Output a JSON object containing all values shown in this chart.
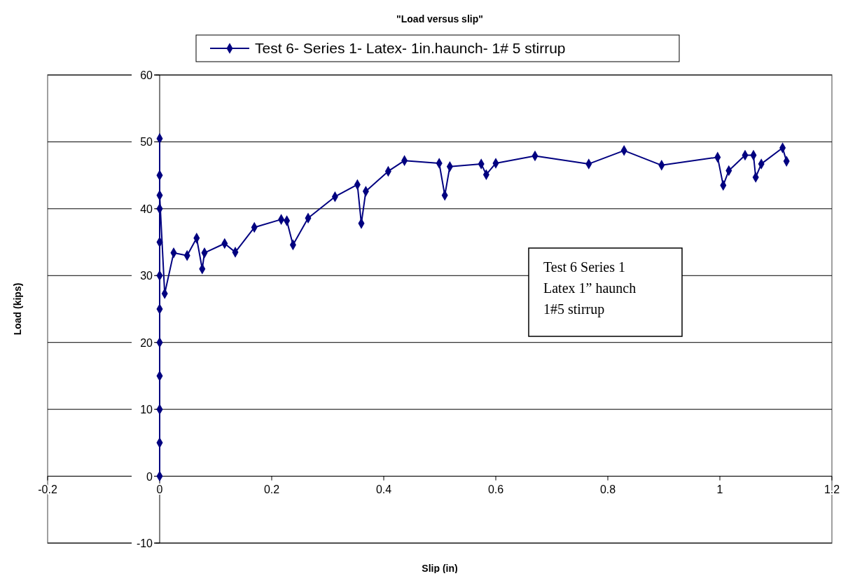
{
  "chart_data": {
    "type": "line",
    "title": "\"Load versus slip\"",
    "xlabel": "Slip (in)",
    "ylabel": "Load (kips)",
    "xlim": [
      -0.2,
      1.2
    ],
    "xticks": [
      -0.2,
      0,
      0.2,
      0.4,
      0.6,
      0.8,
      1,
      1.2
    ],
    "ylim": [
      -10,
      60
    ],
    "yticks": [
      -10,
      0,
      10,
      20,
      30,
      40,
      50,
      60
    ],
    "grid": "y",
    "legend": "top",
    "marker": "diamond",
    "line_style": "solid",
    "annotations": [
      "Test 6 Series 1\nLatex 1” haunch\n1#5 stirrup"
    ],
    "series": [
      {
        "name": "Test 6- Series 1- Latex- 1in.haunch- 1# 5 stirrup",
        "color": "#000080",
        "x": [
          0,
          0,
          0,
          0,
          0,
          0,
          0,
          0,
          0,
          0,
          0,
          0,
          0.009,
          0.025,
          0.049,
          0.066,
          0.076,
          0.08,
          0.116,
          0.135,
          0.169,
          0.217,
          0.227,
          0.238,
          0.265,
          0.313,
          0.353,
          0.36,
          0.368,
          0.408,
          0.437,
          0.499,
          0.509,
          0.518,
          0.574,
          0.583,
          0.6,
          0.67,
          0.766,
          0.829,
          0.896,
          0.996,
          1.006,
          1.016,
          1.045,
          1.06,
          1.064,
          1.074,
          1.112,
          1.119
        ],
        "values": [
          0,
          5,
          10,
          15,
          20,
          25,
          30,
          35,
          40,
          45,
          50.5,
          42,
          27.3,
          33.4,
          33,
          35.6,
          31,
          33.4,
          34.8,
          33.5,
          37.2,
          38.4,
          38.2,
          34.6,
          38.6,
          41.8,
          43.6,
          37.8,
          42.6,
          45.6,
          47.2,
          46.8,
          42,
          46.3,
          46.7,
          45.1,
          46.8,
          47.9,
          46.7,
          48.7,
          46.5,
          47.7,
          43.5,
          45.7,
          48,
          48,
          44.7,
          46.7,
          49.1,
          47.1
        ]
      }
    ]
  }
}
